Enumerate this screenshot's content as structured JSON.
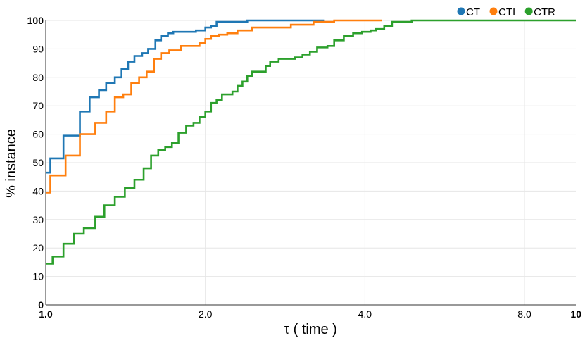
{
  "chart_data": {
    "type": "line",
    "step": true,
    "x_scale": "log2",
    "xlim": [
      1.0,
      10
    ],
    "ylim": [
      0,
      100
    ],
    "xlabel": "τ ( time )",
    "ylabel": "% instance",
    "x_ticks": [
      {
        "value": 1.0,
        "label": "1.0",
        "bold": true
      },
      {
        "value": 2.0,
        "label": "2.0",
        "bold": false
      },
      {
        "value": 4.0,
        "label": "4.0",
        "bold": false
      },
      {
        "value": 8.0,
        "label": "8.0",
        "bold": false
      },
      {
        "value": 10,
        "label": "10",
        "bold": true
      }
    ],
    "y_ticks": [
      {
        "value": 0,
        "label": "0",
        "bold": true
      },
      {
        "value": 10,
        "label": "10",
        "bold": false
      },
      {
        "value": 20,
        "label": "20",
        "bold": false
      },
      {
        "value": 30,
        "label": "30",
        "bold": false
      },
      {
        "value": 40,
        "label": "40",
        "bold": false
      },
      {
        "value": 50,
        "label": "50",
        "bold": false
      },
      {
        "value": 60,
        "label": "60",
        "bold": false
      },
      {
        "value": 70,
        "label": "70",
        "bold": false
      },
      {
        "value": 80,
        "label": "80",
        "bold": false
      },
      {
        "value": 90,
        "label": "90",
        "bold": false
      },
      {
        "value": 100,
        "label": "100",
        "bold": true
      }
    ],
    "grid": true,
    "legend": "top-right",
    "series": [
      {
        "name": "CT",
        "color": "#1f77b4",
        "points": [
          [
            1.0,
            46.5
          ],
          [
            1.02,
            51.5
          ],
          [
            1.08,
            59.5
          ],
          [
            1.16,
            68
          ],
          [
            1.21,
            73
          ],
          [
            1.26,
            75.5
          ],
          [
            1.3,
            78
          ],
          [
            1.35,
            80
          ],
          [
            1.39,
            83
          ],
          [
            1.43,
            85.5
          ],
          [
            1.47,
            87.5
          ],
          [
            1.52,
            88.5
          ],
          [
            1.56,
            90
          ],
          [
            1.61,
            93
          ],
          [
            1.65,
            94.5
          ],
          [
            1.7,
            95.5
          ],
          [
            1.74,
            96
          ],
          [
            1.88,
            96
          ],
          [
            1.92,
            96.5
          ],
          [
            2.0,
            97.5
          ],
          [
            2.05,
            98
          ],
          [
            2.1,
            99.5
          ],
          [
            2.4,
            100
          ],
          [
            3.35,
            100
          ]
        ]
      },
      {
        "name": "CTI",
        "color": "#ff7f0e",
        "points": [
          [
            1.0,
            39.5
          ],
          [
            1.02,
            45.5
          ],
          [
            1.09,
            52.5
          ],
          [
            1.16,
            60
          ],
          [
            1.24,
            64
          ],
          [
            1.3,
            68
          ],
          [
            1.35,
            73
          ],
          [
            1.4,
            74
          ],
          [
            1.45,
            78
          ],
          [
            1.5,
            80
          ],
          [
            1.55,
            82
          ],
          [
            1.6,
            86.5
          ],
          [
            1.65,
            88.5
          ],
          [
            1.71,
            89.5
          ],
          [
            1.8,
            91
          ],
          [
            1.95,
            92
          ],
          [
            2.0,
            93.5
          ],
          [
            2.05,
            94.5
          ],
          [
            2.12,
            95
          ],
          [
            2.2,
            95.5
          ],
          [
            2.3,
            96.5
          ],
          [
            2.45,
            97.5
          ],
          [
            2.9,
            98.5
          ],
          [
            3.2,
            99.5
          ],
          [
            3.5,
            100
          ],
          [
            4.3,
            100
          ]
        ]
      },
      {
        "name": "CTR",
        "color": "#2ca02c",
        "points": [
          [
            1.0,
            14.5
          ],
          [
            1.03,
            17
          ],
          [
            1.08,
            21.5
          ],
          [
            1.13,
            25
          ],
          [
            1.18,
            27
          ],
          [
            1.24,
            31
          ],
          [
            1.29,
            35
          ],
          [
            1.35,
            38
          ],
          [
            1.41,
            41
          ],
          [
            1.47,
            44
          ],
          [
            1.53,
            48
          ],
          [
            1.58,
            52.5
          ],
          [
            1.63,
            54.5
          ],
          [
            1.68,
            55.5
          ],
          [
            1.73,
            57
          ],
          [
            1.78,
            60.5
          ],
          [
            1.84,
            63
          ],
          [
            1.9,
            64
          ],
          [
            1.95,
            66
          ],
          [
            2.0,
            68
          ],
          [
            2.05,
            71
          ],
          [
            2.1,
            72
          ],
          [
            2.15,
            74
          ],
          [
            2.25,
            75
          ],
          [
            2.3,
            77
          ],
          [
            2.35,
            78.5
          ],
          [
            2.4,
            80.5
          ],
          [
            2.45,
            82
          ],
          [
            2.6,
            84
          ],
          [
            2.65,
            85.5
          ],
          [
            2.75,
            86.5
          ],
          [
            2.95,
            87
          ],
          [
            3.05,
            88
          ],
          [
            3.15,
            89
          ],
          [
            3.25,
            90.5
          ],
          [
            3.4,
            91
          ],
          [
            3.5,
            93
          ],
          [
            3.65,
            94.5
          ],
          [
            3.8,
            95.5
          ],
          [
            3.95,
            96
          ],
          [
            4.1,
            96.5
          ],
          [
            4.2,
            97
          ],
          [
            4.35,
            98
          ],
          [
            4.5,
            99.5
          ],
          [
            4.9,
            100
          ],
          [
            10,
            100
          ]
        ]
      }
    ]
  }
}
